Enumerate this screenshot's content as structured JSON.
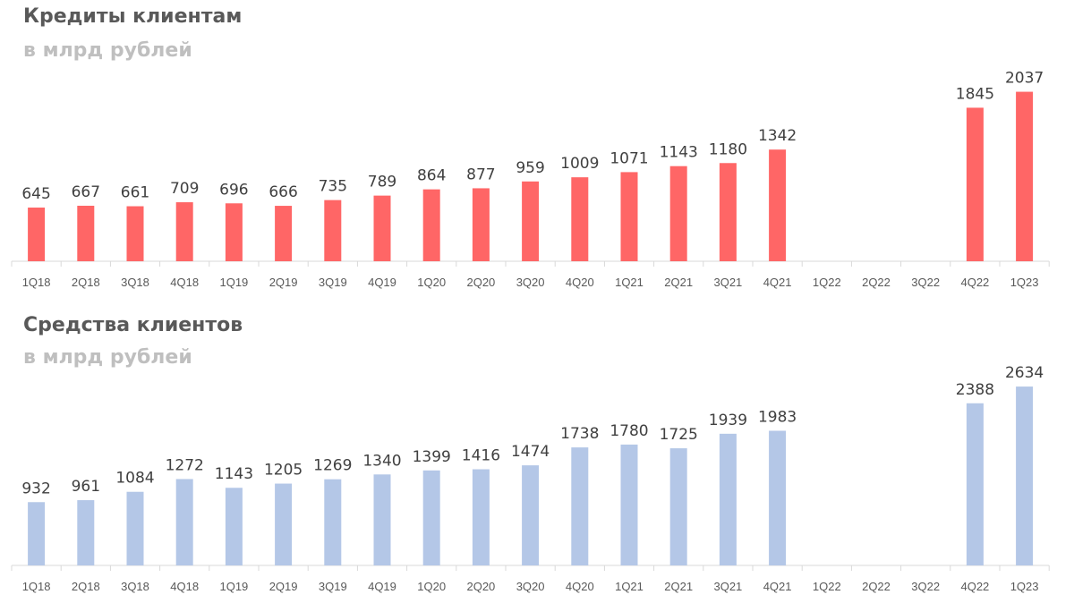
{
  "chart_data": [
    {
      "type": "bar",
      "title": "Кредиты клиентам",
      "subtitle": "в млрд рублей",
      "categories": [
        "1Q18",
        "2Q18",
        "3Q18",
        "4Q18",
        "1Q19",
        "2Q19",
        "3Q19",
        "4Q19",
        "1Q20",
        "2Q20",
        "3Q20",
        "4Q20",
        "1Q21",
        "2Q21",
        "3Q21",
        "4Q21",
        "1Q22",
        "2Q22",
        "3Q22",
        "4Q22",
        "1Q23"
      ],
      "values": [
        645,
        667,
        661,
        709,
        696,
        666,
        735,
        789,
        864,
        877,
        959,
        1009,
        1071,
        1143,
        1180,
        1342,
        null,
        null,
        null,
        1845,
        2037
      ],
      "ylim": [
        0,
        2200
      ],
      "grid": false,
      "color": "#ff6666"
    },
    {
      "type": "bar",
      "title": "Средства клиентов",
      "subtitle": "в млрд рублей",
      "categories": [
        "1Q18",
        "2Q18",
        "3Q18",
        "4Q18",
        "1Q19",
        "2Q19",
        "3Q19",
        "4Q19",
        "1Q20",
        "2Q20",
        "3Q20",
        "4Q20",
        "1Q21",
        "2Q21",
        "3Q21",
        "4Q21",
        "1Q22",
        "2Q22",
        "3Q22",
        "4Q22",
        "1Q23"
      ],
      "values": [
        932,
        961,
        1084,
        1272,
        1143,
        1205,
        1269,
        1340,
        1399,
        1416,
        1474,
        1738,
        1780,
        1725,
        1939,
        1983,
        null,
        null,
        null,
        2388,
        2634
      ],
      "ylim": [
        0,
        2850
      ],
      "grid": false,
      "color": "#b4c7e7"
    }
  ]
}
